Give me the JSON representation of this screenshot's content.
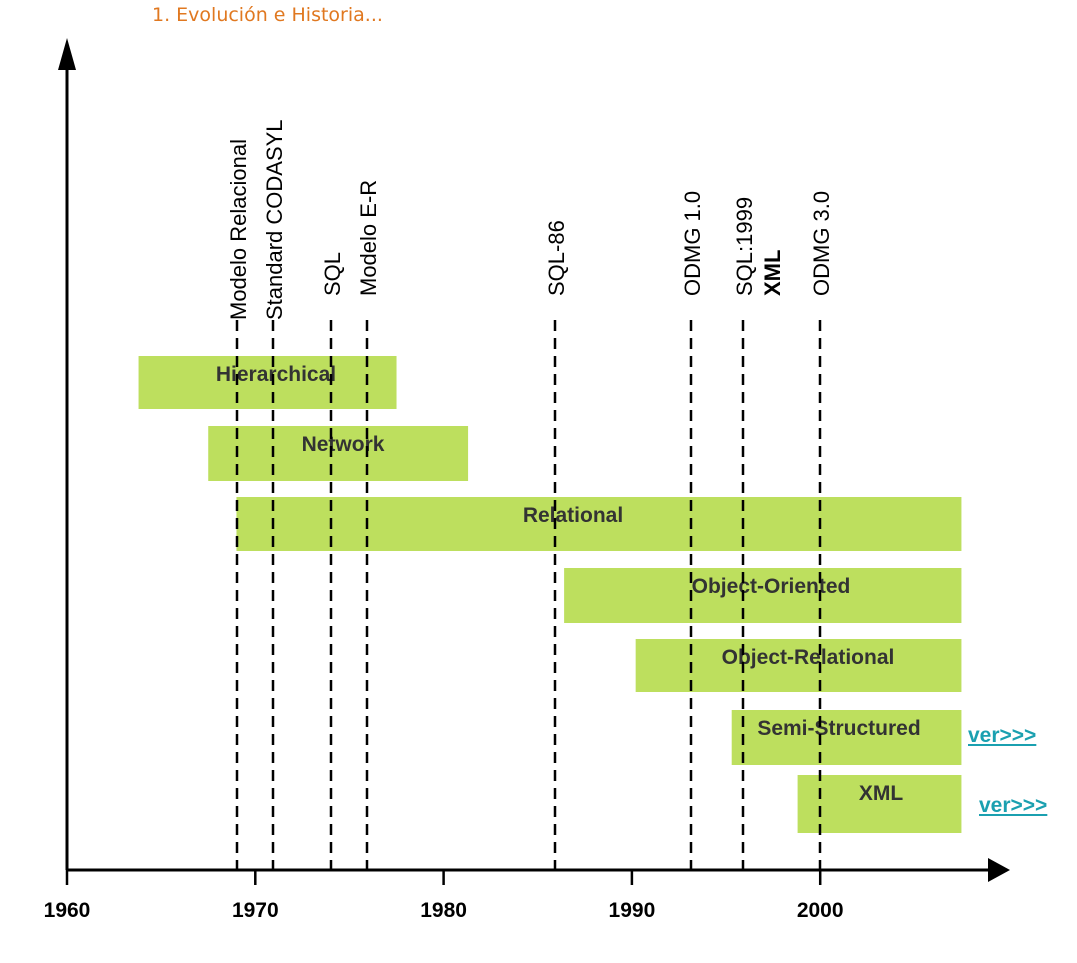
{
  "page": {
    "title": "1. Evolución e Historia..."
  },
  "links": {
    "ver_semi": "ver>>>",
    "ver_xml": "ver>>>"
  },
  "colors": {
    "bar": "#bddf5e",
    "axis": "#000000",
    "title": "#e07820",
    "link": "#1aa0b0"
  },
  "chart_data": {
    "type": "bar",
    "orientation": "horizontal-timeline",
    "title": "",
    "xlabel": "",
    "ylabel": "",
    "xlim": [
      1960,
      2008
    ],
    "xticks": [
      1960,
      1970,
      1980,
      1990,
      2000
    ],
    "bars": [
      {
        "label": "Hierarchical",
        "start": 1963.8,
        "end": 1977.5
      },
      {
        "label": "Network",
        "start": 1967.5,
        "end": 1981.3
      },
      {
        "label": "Relational",
        "start": 1969.0,
        "end": 2007.5
      },
      {
        "label": "Object-Oriented",
        "start": 1986.4,
        "end": 2007.5
      },
      {
        "label": "Object-Relational",
        "start": 1990.2,
        "end": 2007.5
      },
      {
        "label": "Semi-Structured",
        "start": 1995.3,
        "end": 2007.5
      },
      {
        "label": "XML",
        "start": 1998.8,
        "end": 2007.5
      }
    ],
    "events": [
      {
        "year": 1969.0,
        "labels": [
          "Modelo Relacional"
        ]
      },
      {
        "year": 1971.0,
        "labels": [
          "Standard CODASYL"
        ]
      },
      {
        "year": 1974.0,
        "labels": [
          "SQL"
        ]
      },
      {
        "year": 1976.0,
        "labels": [
          "Modelo E-R"
        ]
      },
      {
        "year": 1986.0,
        "labels": [
          "SQL-86"
        ]
      },
      {
        "year": 1993.3,
        "labels": [
          "ODMG 1.0"
        ]
      },
      {
        "year": 1996.0,
        "labels": [
          "SQL:1999",
          "XML"
        ]
      },
      {
        "year": 2000.0,
        "labels": [
          "ODMG 3.0"
        ]
      }
    ]
  }
}
